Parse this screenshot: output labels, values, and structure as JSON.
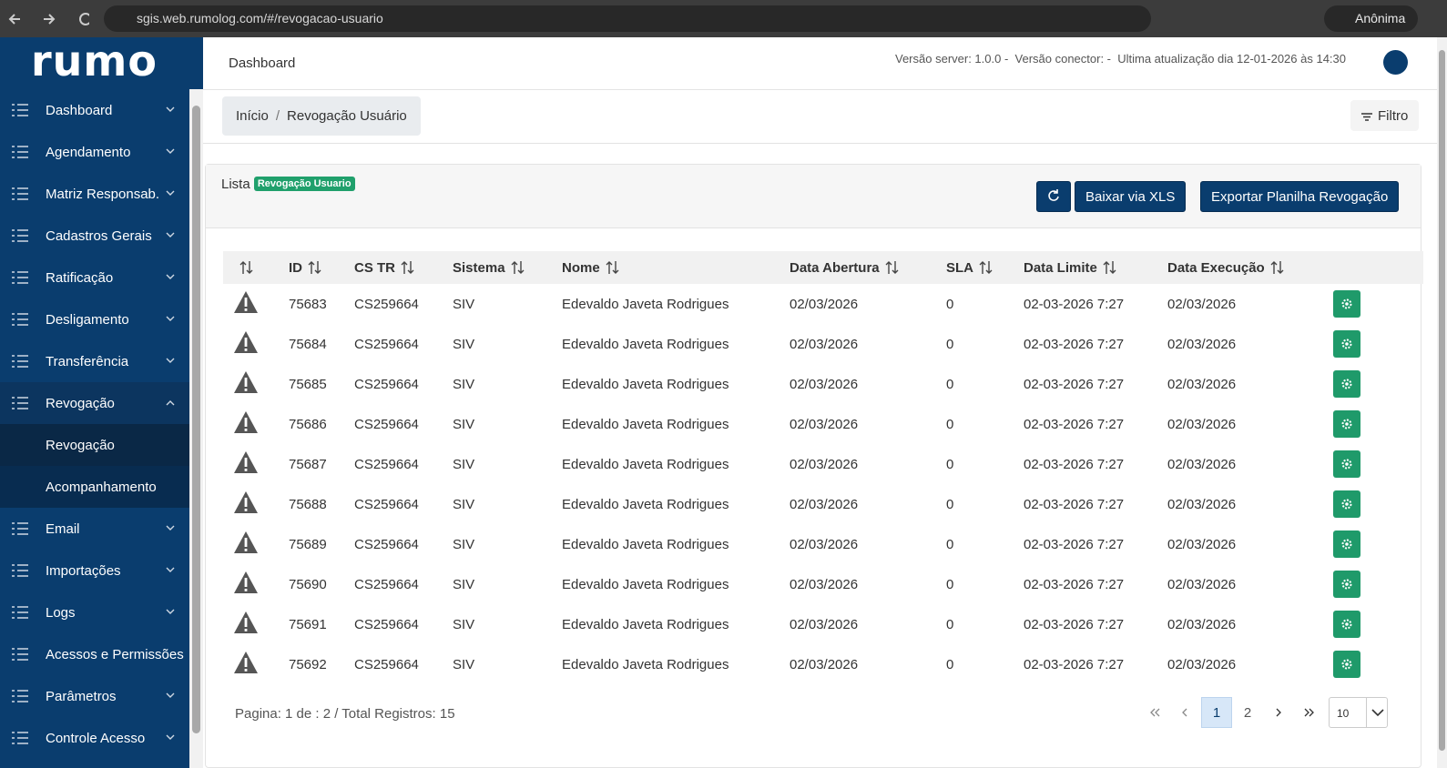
{
  "browser": {
    "url": "sgis.web.rumolog.com/#/revogacao-usuario",
    "profile": "Anônima"
  },
  "sidebar": {
    "logo": "rumo",
    "menu": [
      {
        "label": "Dashboard"
      },
      {
        "label": "Agendamento"
      },
      {
        "label": "Matriz Responsab."
      },
      {
        "label": "Cadastros Gerais"
      },
      {
        "label": "Ratificação"
      },
      {
        "label": "Desligamento"
      },
      {
        "label": "Transferência"
      },
      {
        "label": "Revogação",
        "expanded": true,
        "children": [
          "Revogação",
          "Acompanhamento"
        ]
      },
      {
        "label": "Email"
      },
      {
        "label": "Importações"
      },
      {
        "label": "Logs"
      },
      {
        "label": "Acessos e Permissões",
        "collapsible": false
      },
      {
        "label": "Parâmetros"
      },
      {
        "label": "Controle Acesso"
      }
    ]
  },
  "header": {
    "title": "Dashboard",
    "version_info": "Versão server: 1.0.0 -  Versão conector: -  Ultima atualização dia 12-01-2026 às 14:30"
  },
  "breadcrumb": [
    "Início",
    "Revogação Usuário"
  ],
  "filter_button": "Filtro",
  "list": {
    "label": "Lista",
    "badge": "Revogação Usuario",
    "buttons": [
      "Baixar via XLS",
      "Exportar Planilha Revogação"
    ]
  },
  "table": {
    "columns": [
      "ID",
      "CS TR",
      "Sistema",
      "Nome",
      "Data Abertura",
      "SLA",
      "Data Limite",
      "Data Execução"
    ],
    "rows": [
      [
        75683,
        "CS259664",
        "SIV",
        "Edevaldo Javeta Rodrigues",
        "02/03/2026",
        0,
        "02-03-2026 7:27",
        "02/03/2026"
      ],
      [
        75684,
        "CS259664",
        "SIV",
        "Edevaldo Javeta Rodrigues",
        "02/03/2026",
        0,
        "02-03-2026 7:27",
        "02/03/2026"
      ],
      [
        75685,
        "CS259664",
        "SIV",
        "Edevaldo Javeta Rodrigues",
        "02/03/2026",
        0,
        "02-03-2026 7:27",
        "02/03/2026"
      ],
      [
        75686,
        "CS259664",
        "SIV",
        "Edevaldo Javeta Rodrigues",
        "02/03/2026",
        0,
        "02-03-2026 7:27",
        "02/03/2026"
      ],
      [
        75687,
        "CS259664",
        "SIV",
        "Edevaldo Javeta Rodrigues",
        "02/03/2026",
        0,
        "02-03-2026 7:27",
        "02/03/2026"
      ],
      [
        75688,
        "CS259664",
        "SIV",
        "Edevaldo Javeta Rodrigues",
        "02/03/2026",
        0,
        "02-03-2026 7:27",
        "02/03/2026"
      ],
      [
        75689,
        "CS259664",
        "SIV",
        "Edevaldo Javeta Rodrigues",
        "02/03/2026",
        0,
        "02-03-2026 7:27",
        "02/03/2026"
      ],
      [
        75690,
        "CS259664",
        "SIV",
        "Edevaldo Javeta Rodrigues",
        "02/03/2026",
        0,
        "02-03-2026 7:27",
        "02/03/2026"
      ],
      [
        75691,
        "CS259664",
        "SIV",
        "Edevaldo Javeta Rodrigues",
        "02/03/2026",
        0,
        "02-03-2026 7:27",
        "02/03/2026"
      ],
      [
        75692,
        "CS259664",
        "SIV",
        "Edevaldo Javeta Rodrigues",
        "02/03/2026",
        0,
        "02-03-2026 7:27",
        "02/03/2026"
      ]
    ]
  },
  "pagination": {
    "summary": "Pagina: 1 de : 2 / Total Registros: 15",
    "pages": [
      1,
      2
    ],
    "current": 1,
    "page_size": 10
  }
}
